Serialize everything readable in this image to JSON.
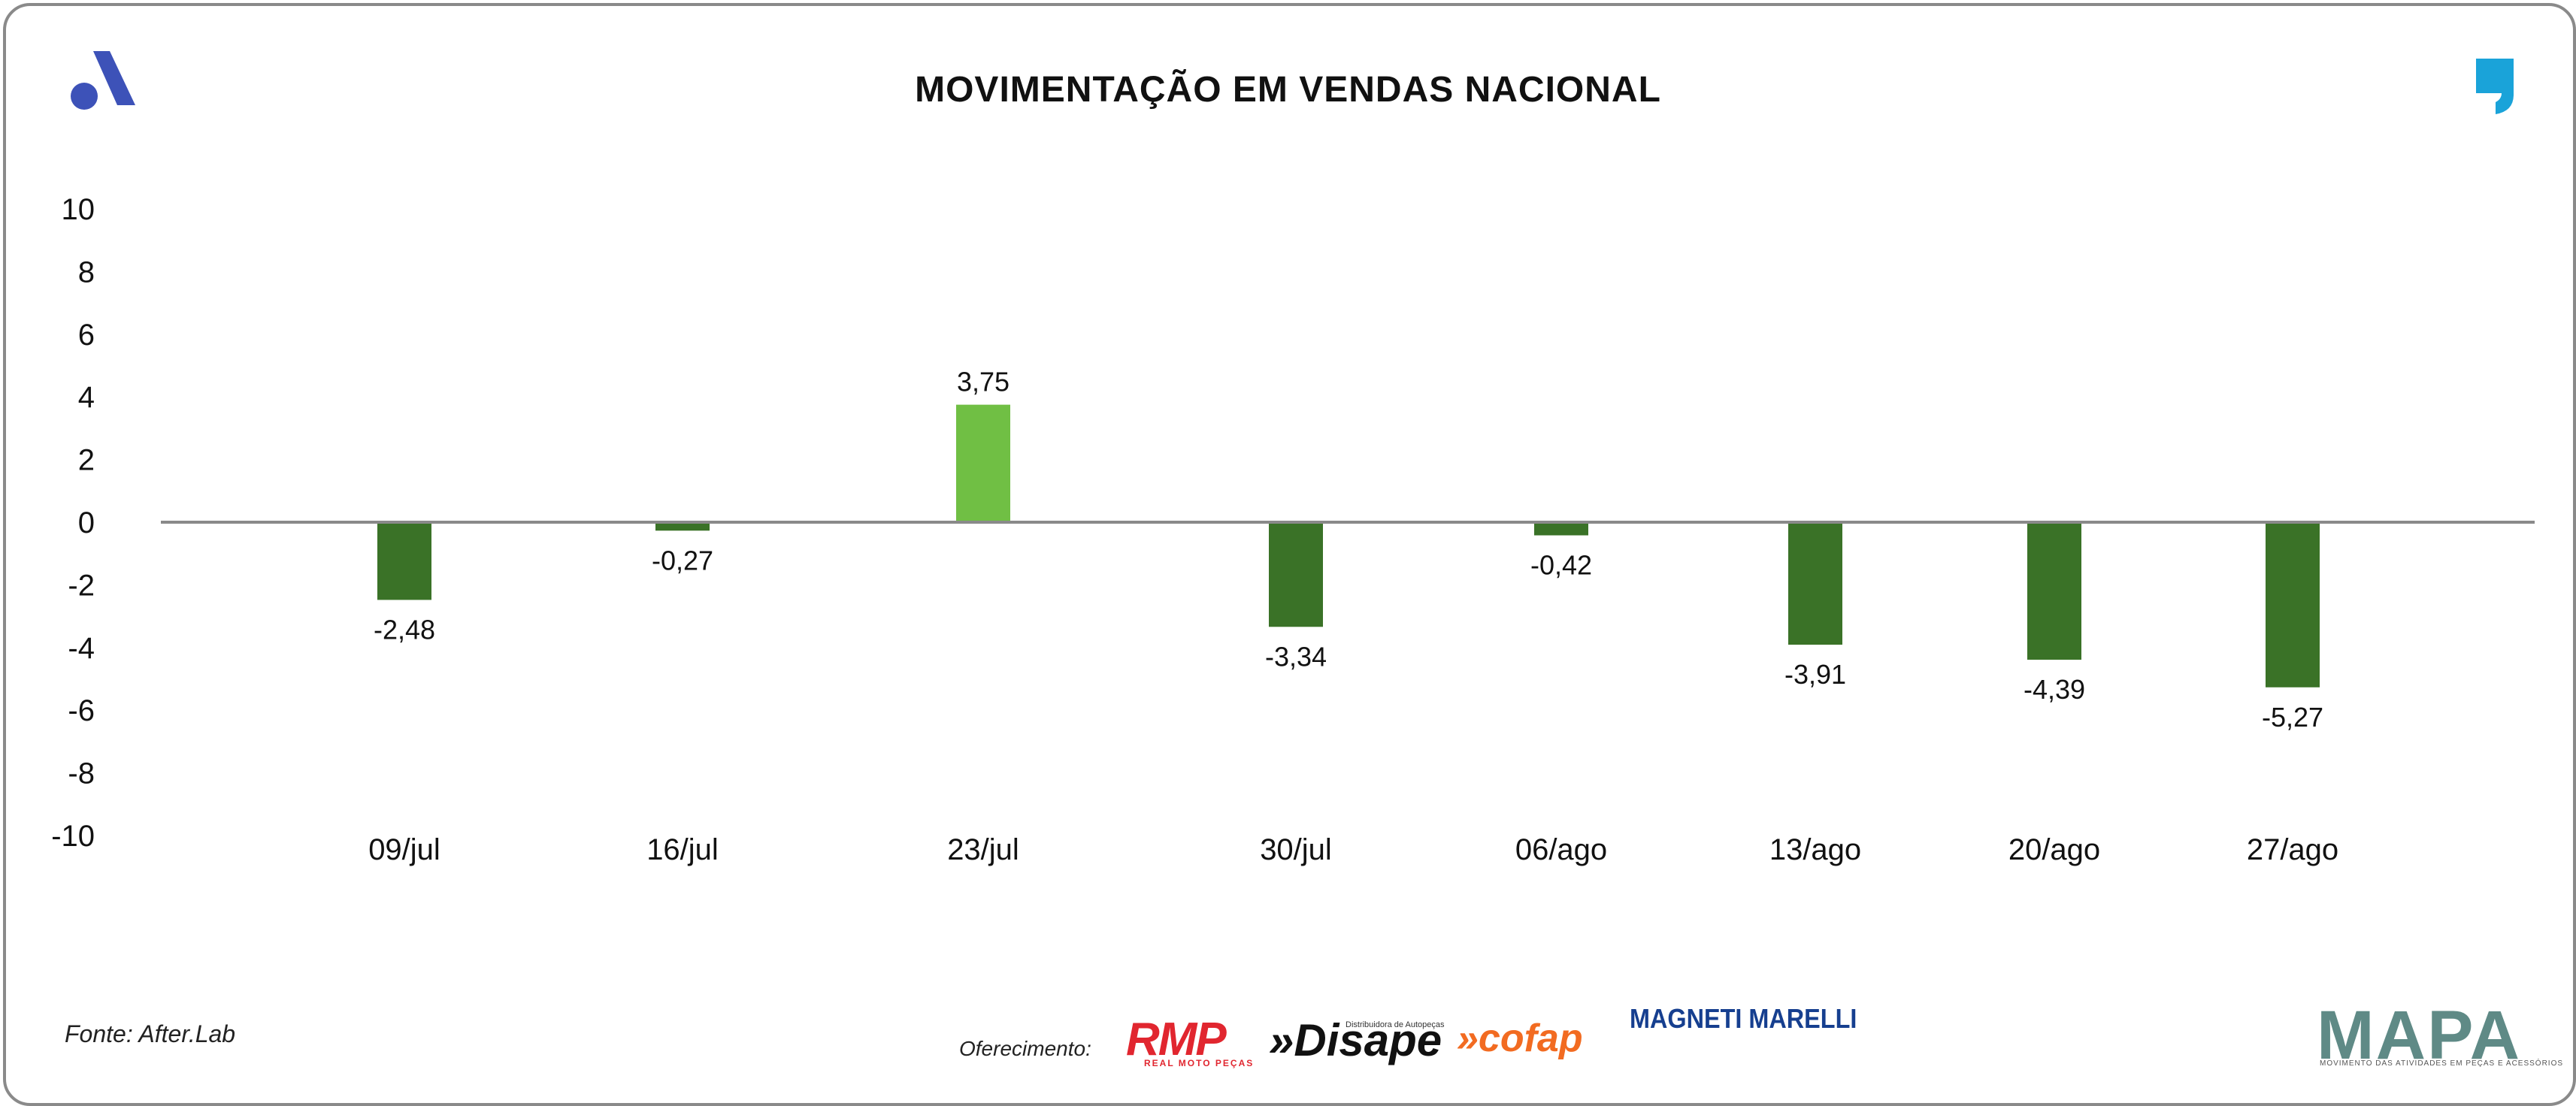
{
  "header": {
    "title": "MOVIMENTAÇÃO EM VENDAS NACIONAL",
    "left_logo": "afterlab-a-logo",
    "right_logo": "comma-quote-logo"
  },
  "footer": {
    "source": "Fonte: After.Lab",
    "sponsor_label": "Oferecimento:",
    "sponsors": [
      {
        "name": "RMP",
        "sub": "REAL MOTO PEÇAS",
        "color": "#e1262f"
      },
      {
        "name": "»Disape",
        "sub": "Distribuidora de Autopeças",
        "color": "#111111"
      },
      {
        "name": "»cofap",
        "color": "#f26b21"
      },
      {
        "name": "MAGNETI MARELLI",
        "color": "#163f8f"
      }
    ],
    "brand": "MAPA",
    "brand_sub": "MOVIMENTO DAS ATIVIDADES EM PEÇAS E ACESSÓRIOS"
  },
  "colors": {
    "positive_bar": "#70bf44",
    "negative_bar": "#3a7227",
    "axis_line": "#8a8a8a",
    "logo_blue": "#3d52b8",
    "quote_blue": "#1aa3d9"
  },
  "chart_data": {
    "type": "bar",
    "title": "MOVIMENTAÇÃO EM VENDAS NACIONAL",
    "categories": [
      "09/jul",
      "16/jul",
      "23/jul",
      "30/jul",
      "06/ago",
      "13/ago",
      "20/ago",
      "27/ago"
    ],
    "values": [
      -2.48,
      -0.27,
      3.75,
      -3.34,
      -0.42,
      -3.91,
      -4.39,
      -5.27
    ],
    "data_labels": [
      "-2,48",
      "-0,27",
      "3,75",
      "-3,34",
      "-0,42",
      "-3,91",
      "-4,39",
      "-5,27"
    ],
    "ylim": [
      -10,
      10
    ],
    "yticks": [
      10,
      8,
      6,
      4,
      2,
      0,
      -2,
      -4,
      -6,
      -8,
      -10
    ],
    "xlabel": "",
    "ylabel": "",
    "grid": false,
    "legend": "none"
  }
}
